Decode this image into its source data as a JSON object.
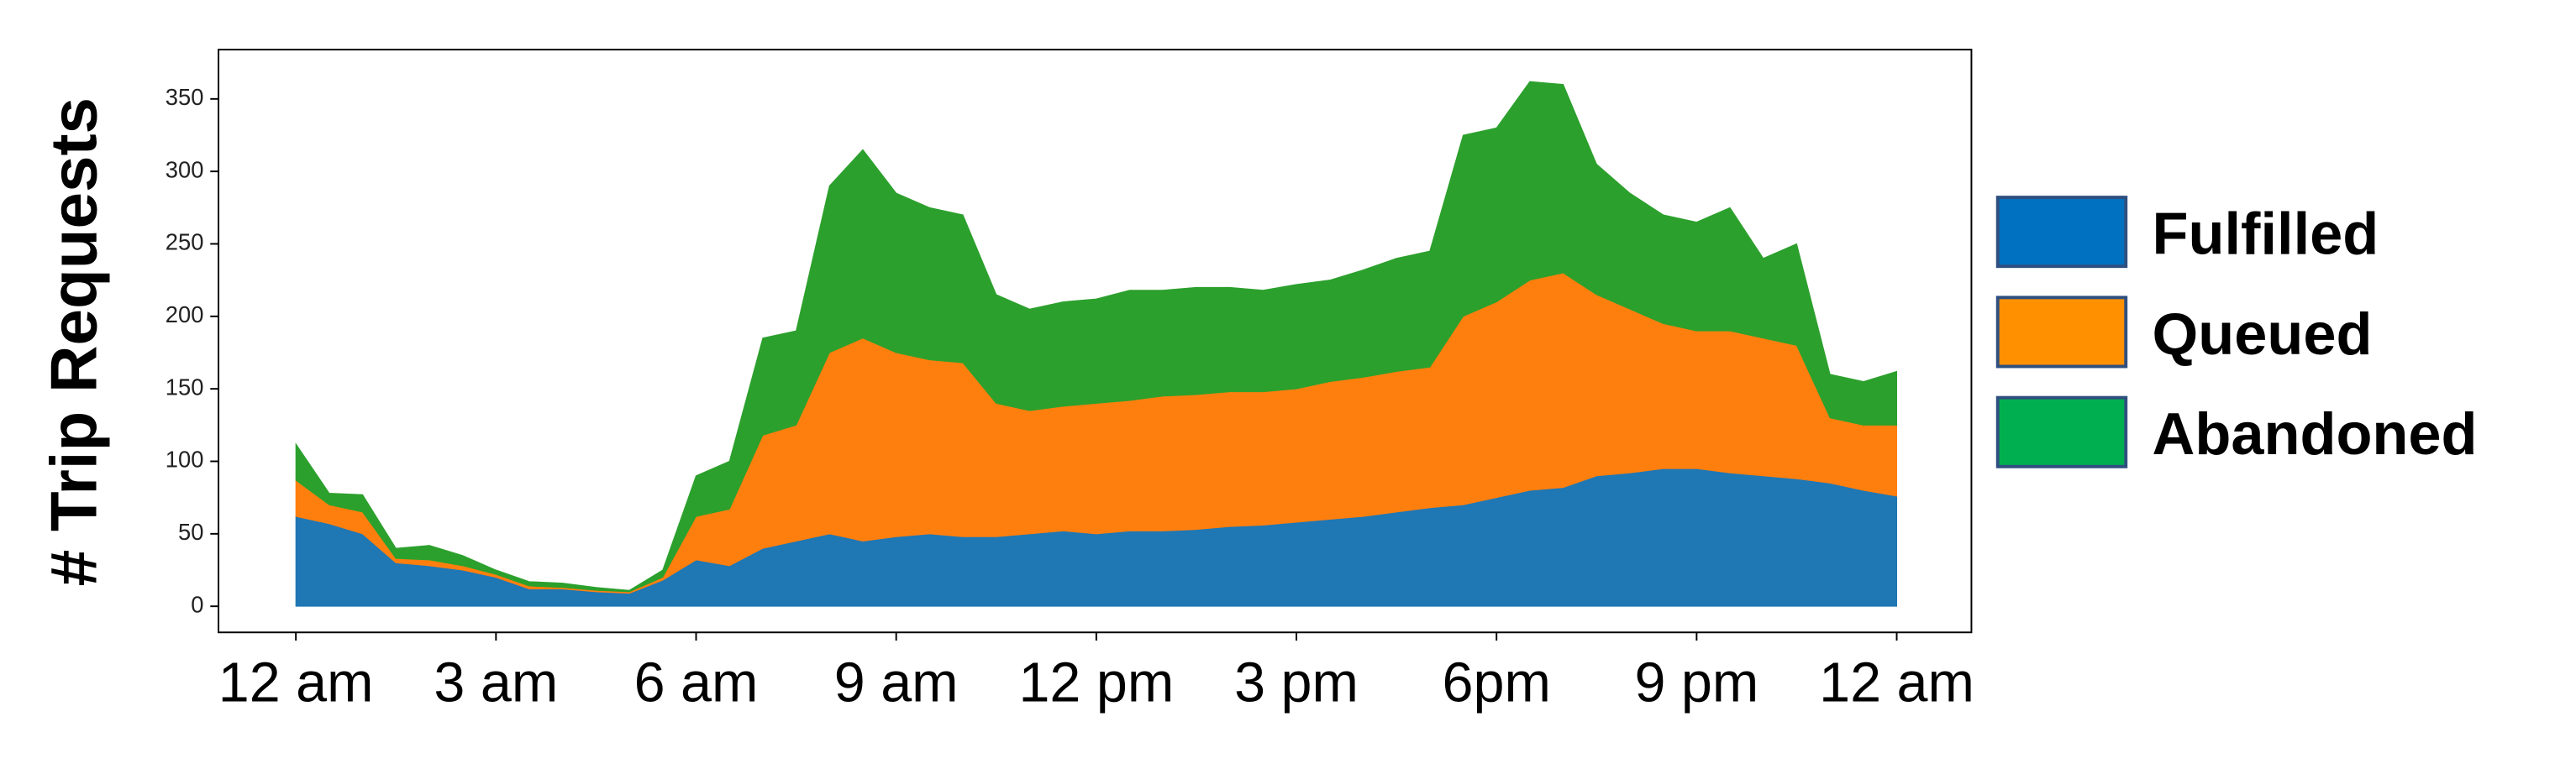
{
  "chart_data": {
    "type": "stacked_area",
    "y_label": "# Trip Requests",
    "x": [
      0,
      0.5,
      1,
      1.5,
      2,
      2.5,
      3,
      3.5,
      4,
      4.5,
      5,
      5.5,
      6,
      6.5,
      7,
      7.5,
      8,
      8.5,
      9,
      9.5,
      10,
      10.5,
      11,
      11.5,
      12,
      12.5,
      13,
      13.5,
      14,
      14.5,
      15,
      15.5,
      16,
      16.5,
      17,
      17.5,
      18,
      18.5,
      19,
      19.5,
      20,
      20.5,
      21,
      21.5,
      22,
      22.5,
      23,
      23.5,
      24
    ],
    "series": [
      {
        "name": "Fulfilled",
        "color": "#1f77b4",
        "legend_color": "#0070c0",
        "values": [
          62,
          57,
          50,
          30,
          28,
          25,
          20,
          12,
          12,
          10,
          9,
          18,
          32,
          28,
          40,
          45,
          50,
          45,
          48,
          50,
          48,
          48,
          50,
          52,
          50,
          52,
          52,
          53,
          55,
          56,
          58,
          60,
          62,
          65,
          68,
          70,
          75,
          80,
          82,
          90,
          92,
          95,
          95,
          92,
          90,
          88,
          85,
          80,
          76
        ]
      },
      {
        "name": "Queued",
        "color": "#ff7f0e",
        "legend_color": "#ff9000",
        "values": [
          25,
          13,
          15,
          3,
          4,
          3,
          2,
          2,
          1,
          1,
          1,
          2,
          30,
          39,
          78,
          80,
          125,
          140,
          127,
          120,
          120,
          92,
          85,
          86,
          90,
          90,
          93,
          93,
          93,
          92,
          92,
          95,
          96,
          97,
          97,
          130,
          135,
          145,
          148,
          125,
          113,
          100,
          95,
          98,
          95,
          92,
          45,
          45,
          49
        ]
      },
      {
        "name": "Abandoned",
        "color": "#2ca02c",
        "legend_color": "#00b050",
        "values": [
          25,
          8,
          12,
          7,
          10,
          7,
          3,
          3,
          3,
          2,
          1,
          5,
          28,
          33,
          67,
          65,
          115,
          130,
          110,
          105,
          102,
          75,
          70,
          72,
          72,
          76,
          73,
          74,
          72,
          70,
          72,
          70,
          74,
          78,
          80,
          125,
          120,
          137,
          130,
          90,
          80,
          75,
          75,
          85,
          55,
          70,
          30,
          30,
          37
        ]
      }
    ],
    "xlim": [
      -1.16,
      25.12
    ],
    "xticks": [
      {
        "value": 0,
        "label": "12 am"
      },
      {
        "value": 3,
        "label": "3 am"
      },
      {
        "value": 6,
        "label": "6 am"
      },
      {
        "value": 9,
        "label": "9 am"
      },
      {
        "value": 12,
        "label": "12 pm"
      },
      {
        "value": 15,
        "label": "3 pm"
      },
      {
        "value": 18,
        "label": "6pm"
      },
      {
        "value": 21,
        "label": "9 pm"
      },
      {
        "value": 24,
        "label": "12 am"
      }
    ],
    "ylim": [
      -18,
      384
    ],
    "yticks": [
      0,
      50,
      100,
      150,
      200,
      250,
      300,
      350
    ]
  }
}
